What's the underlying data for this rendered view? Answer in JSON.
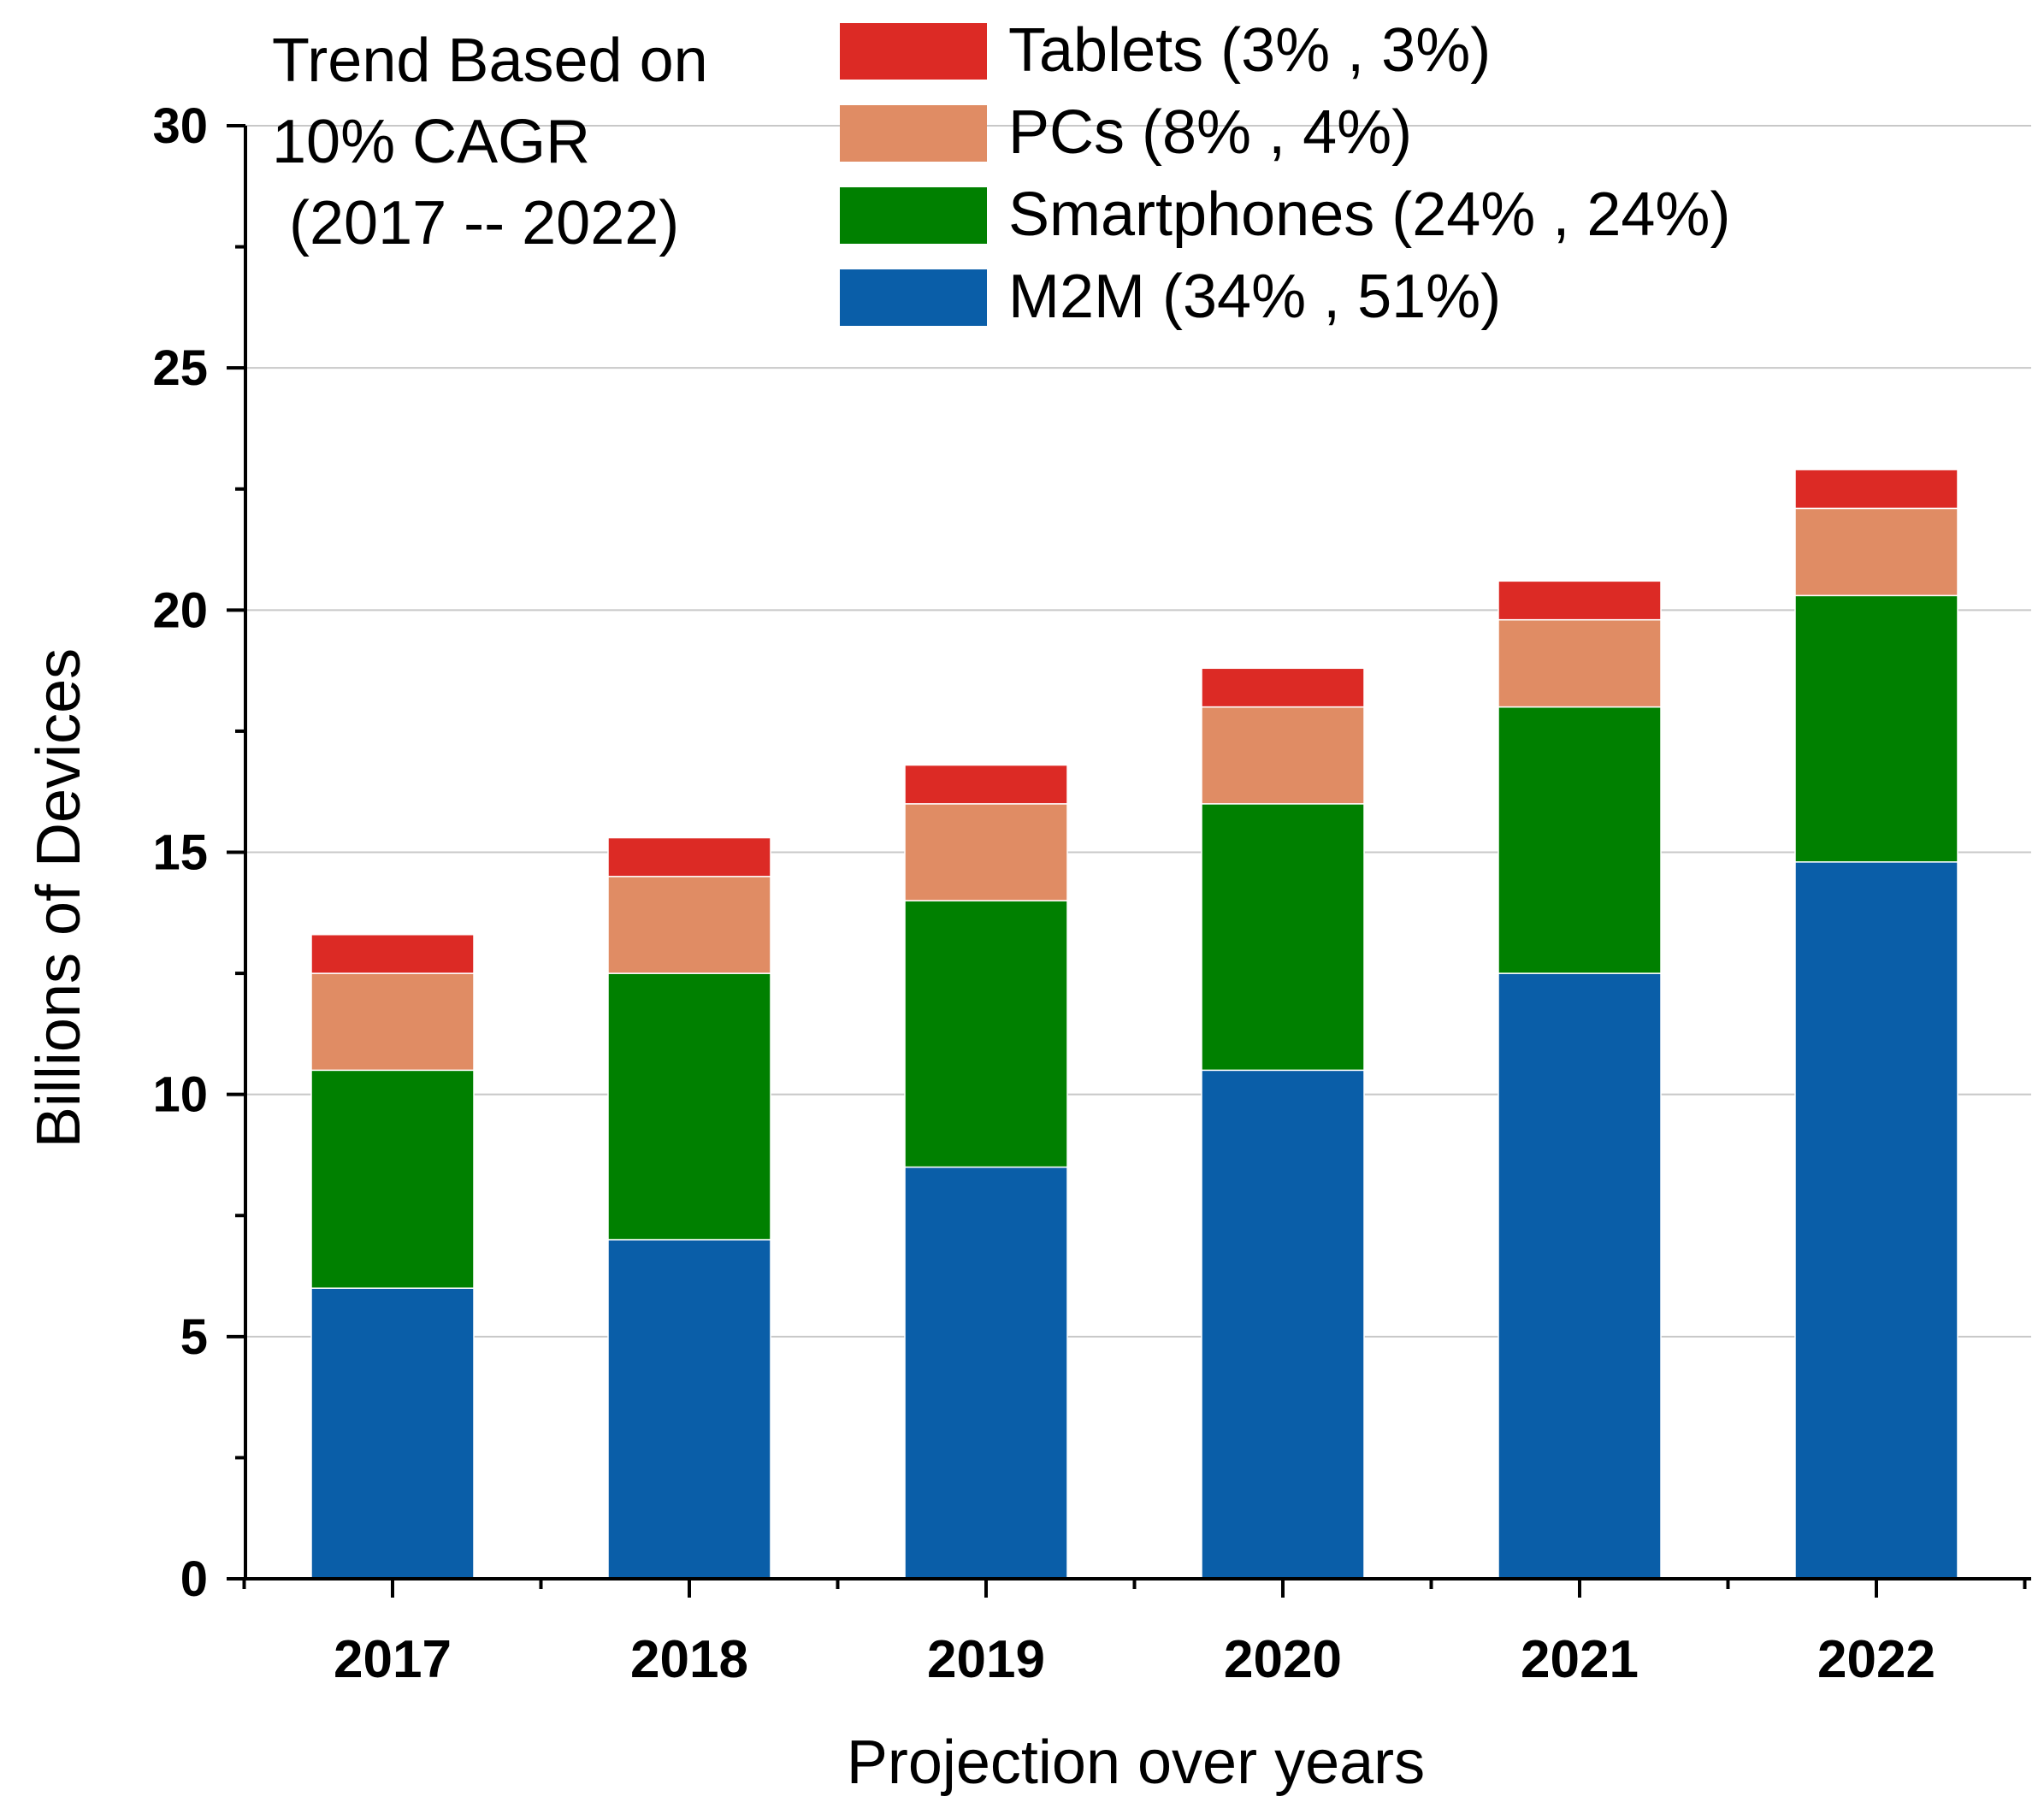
{
  "chart_data": {
    "type": "bar",
    "stacked": true,
    "title": "",
    "xlabel": "Projection over years",
    "ylabel": "Billions of Devices",
    "ylim": [
      0,
      30
    ],
    "yticks": [
      "0",
      "5",
      "10",
      "15",
      "20",
      "25",
      "30"
    ],
    "grid": true,
    "categories": [
      "2017",
      "2018",
      "2019",
      "2020",
      "2021",
      "2022"
    ],
    "series": [
      {
        "name": "M2M (34% , 51%)",
        "color": "#0a5ea8",
        "values": [
          6.0,
          7.0,
          8.5,
          10.5,
          12.5,
          14.8
        ]
      },
      {
        "name": "Smartphones (24% , 24%)",
        "color": "#008000",
        "values": [
          4.5,
          5.5,
          5.5,
          5.5,
          5.5,
          5.5
        ]
      },
      {
        "name": "PCs (8% , 4%)",
        "color": "#e08c64",
        "values": [
          2.0,
          2.0,
          2.0,
          2.0,
          1.8,
          1.8
        ]
      },
      {
        "name": "Tablets (3% , 3%)",
        "color": "#dc2a25",
        "values": [
          0.8,
          0.8,
          0.8,
          0.8,
          0.8,
          0.8
        ]
      }
    ],
    "legend_order": [
      3,
      2,
      1,
      0
    ],
    "legend_position": "top",
    "annotation": {
      "lines": [
        "Trend Based on",
        "10% CAGR",
        " (2017 -- 2022)"
      ],
      "position": "top-left"
    }
  }
}
